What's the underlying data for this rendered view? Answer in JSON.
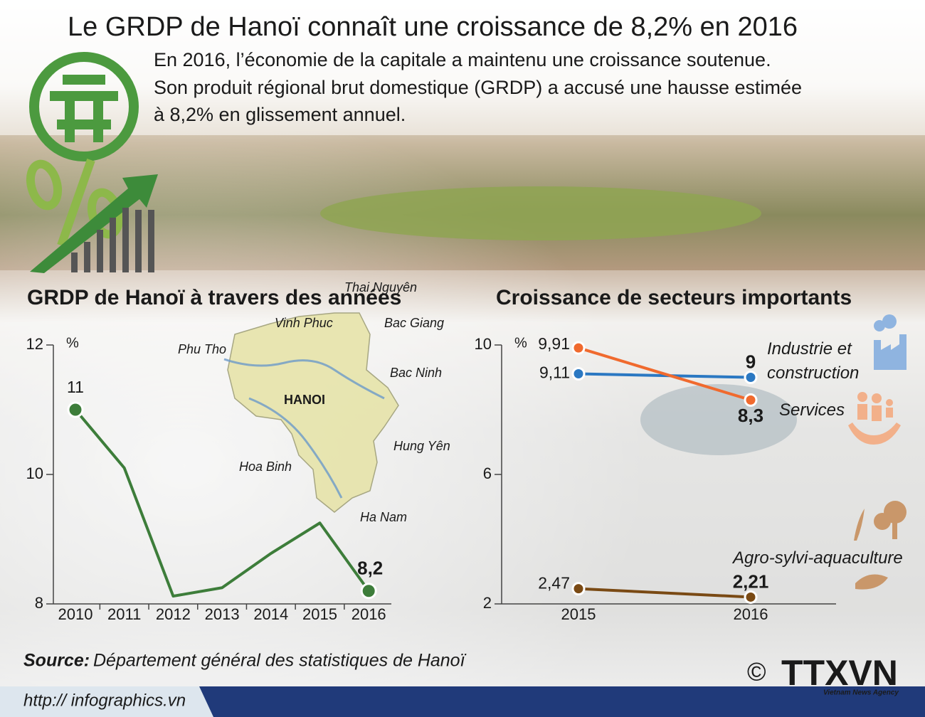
{
  "header": {
    "title": "Le GRDP de Hanoï connaît une croissance de 8,2% en 2016",
    "intro": [
      "En 2016, l’économie de la capitale a maintenu une croissance soutenue.",
      "Son produit régional brut domestique (GRDP) a accusé une hausse estimée",
      "à 8,2% en glissement annuel."
    ]
  },
  "map": {
    "labels": [
      "Thai Nguyên",
      "Vinh Phuc",
      "Bac Giang",
      "Phu Tho",
      "Bac Ninh",
      "HANOI",
      "Hung Yên",
      "Hoa Binh",
      "Ha Nam"
    ]
  },
  "chart_data": [
    {
      "type": "line",
      "title": "GRDP de Hanoï à travers des années",
      "y_label": "%",
      "categories": [
        "2010",
        "2011",
        "2012",
        "2013",
        "2014",
        "2015",
        "2016"
      ],
      "values": [
        11,
        10.1,
        8.12,
        8.25,
        8.78,
        9.25,
        8.2
      ],
      "value_labels": [
        "11",
        null,
        null,
        null,
        null,
        null,
        "8,2"
      ],
      "color": "#3d7d3a",
      "ylim": [
        8,
        12
      ],
      "yticks": [
        8,
        10,
        12
      ]
    },
    {
      "type": "line",
      "title": "Croissance de secteurs importants",
      "y_label": "%",
      "categories": [
        "2015",
        "2016"
      ],
      "series": [
        {
          "name": "Industrie et construction",
          "color": "#2b78c2",
          "values": [
            9.11,
            9
          ],
          "value_labels": [
            "9,11",
            "9"
          ]
        },
        {
          "name": "Services",
          "color": "#f06a2e",
          "values": [
            9.91,
            8.3
          ],
          "value_labels": [
            "9,91",
            "8,3"
          ]
        },
        {
          "name": "Agro-sylvi-aquaculture",
          "color": "#7a4a14",
          "values": [
            2.47,
            2.21
          ],
          "value_labels": [
            "2,47",
            "2,21"
          ]
        }
      ],
      "ylim": [
        2,
        10
      ],
      "yticks": [
        2,
        6,
        10
      ]
    }
  ],
  "source": {
    "label": "Source:",
    "text": "Département général des statistiques de Hanoï"
  },
  "footer": {
    "url": "http:// infographics.vn",
    "logo": "TTXVN",
    "agency": "Vietnam News Agency",
    "copyright": "©"
  }
}
